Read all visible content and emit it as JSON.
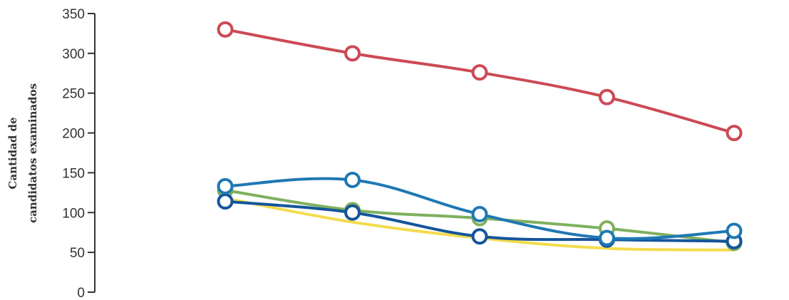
{
  "chart_data": {
    "type": "line",
    "ylabel": [
      "Cantidad de",
      "candidatos examinados"
    ],
    "ylim": [
      0,
      350
    ],
    "yticks": [
      0,
      50,
      100,
      150,
      200,
      250,
      300,
      350
    ],
    "x": [
      1,
      2,
      3,
      4,
      5
    ],
    "grid": false,
    "legend": "none",
    "series": [
      {
        "color": "#cc4a55",
        "values": [
          330,
          300,
          276,
          245,
          200
        ],
        "markers": true
      },
      {
        "color": "#1f78b4",
        "values": [
          133,
          141,
          98,
          68,
          77
        ],
        "markers": true
      },
      {
        "color": "#7fb05e",
        "values": [
          128,
          103,
          93,
          80,
          62
        ],
        "markers": true
      },
      {
        "color": "#f3dc4d",
        "values": [
          118,
          88,
          68,
          55,
          53
        ],
        "markers": false
      },
      {
        "color": "#15559b",
        "values": [
          114,
          100,
          70,
          66,
          64
        ],
        "markers": true
      }
    ]
  }
}
